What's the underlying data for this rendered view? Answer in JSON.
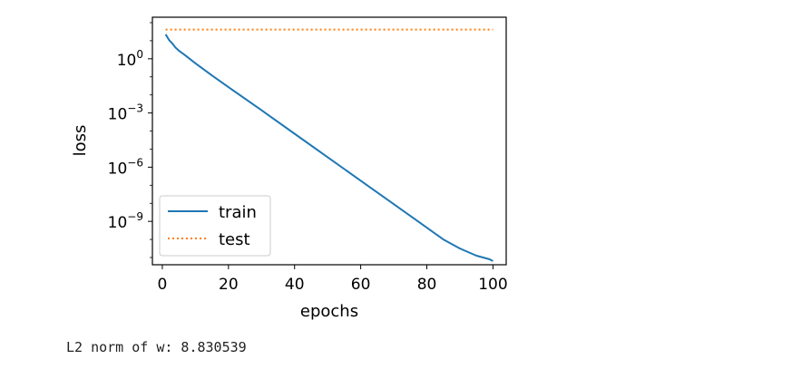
{
  "chart_data": {
    "type": "line",
    "xlabel": "epochs",
    "ylabel": "loss",
    "yscale": "log",
    "xlim": [
      -3,
      104
    ],
    "ylim_log10": [
      -11.4,
      2.3
    ],
    "xticks": [
      0,
      20,
      40,
      60,
      80,
      100
    ],
    "xtick_labels": [
      "0",
      "20",
      "40",
      "60",
      "80",
      "100"
    ],
    "yticks_log10": [
      0,
      -3,
      -6,
      -9
    ],
    "ytick_labels": [
      {
        "base": "10",
        "exp": "0"
      },
      {
        "base": "10",
        "exp": "−3"
      },
      {
        "base": "10",
        "exp": "−6"
      },
      {
        "base": "10",
        "exp": "−9"
      }
    ],
    "legend_position": "lower-left",
    "series": [
      {
        "name": "train",
        "color": "#1f77b4",
        "style": "solid",
        "x": [
          1,
          2,
          3,
          4,
          5,
          7,
          10,
          15,
          20,
          30,
          40,
          50,
          60,
          70,
          80,
          85,
          90,
          95,
          98,
          99,
          100
        ],
        "log10y": [
          1.35,
          1.05,
          0.85,
          0.62,
          0.45,
          0.18,
          -0.25,
          -0.92,
          -1.57,
          -2.85,
          -4.15,
          -5.45,
          -6.75,
          -8.05,
          -9.35,
          -10.0,
          -10.5,
          -10.9,
          -11.05,
          -11.1,
          -11.2
        ]
      },
      {
        "name": "test",
        "color": "#ff7f0e",
        "style": "dotted",
        "x": [
          1,
          100
        ],
        "log10y": [
          1.62,
          1.62
        ]
      }
    ]
  },
  "output": {
    "text": "L2 norm of w: 8.830539"
  }
}
